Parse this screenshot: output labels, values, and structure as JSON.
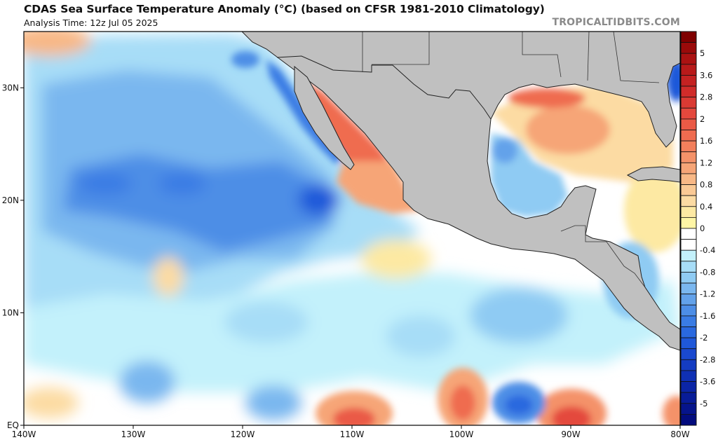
{
  "header": {
    "title": "CDAS Sea Surface Temperature Anomaly (°C) (based on CFSR 1981-2010 Climatology)",
    "analysis_time": "Analysis Time: 12z Jul 05 2025",
    "brand": "TROPICALTIDBITS.COM"
  },
  "map": {
    "projection": "equirectangular",
    "lon_range": [
      -140,
      -80
    ],
    "lat_range": [
      0,
      35
    ],
    "land_color": "#c0c0c0",
    "border_color": "#222222",
    "x_ticks": [
      {
        "lon": -140,
        "label": "140W"
      },
      {
        "lon": -130,
        "label": "130W"
      },
      {
        "lon": -120,
        "label": "120W"
      },
      {
        "lon": -110,
        "label": "110W"
      },
      {
        "lon": -100,
        "label": "100W"
      },
      {
        "lon": -90,
        "label": "90W"
      },
      {
        "lon": -80,
        "label": "80W"
      }
    ],
    "y_ticks": [
      {
        "lat": 0,
        "label": "EQ"
      },
      {
        "lat": 10,
        "label": "10N"
      },
      {
        "lat": 20,
        "label": "20N"
      },
      {
        "lat": 30,
        "label": "30N"
      }
    ],
    "features": [
      {
        "name": "warm-gulf-of-california",
        "lon": -110,
        "lat": 26,
        "anomaly": 2.0
      },
      {
        "name": "warm-northern-gulf-of-mexico",
        "lon": -90,
        "lat": 28,
        "anomaly": 1.6
      },
      {
        "name": "cold-western-gulf-of-mexico",
        "lon": -95.5,
        "lat": 24,
        "anomaly": -1.2
      },
      {
        "name": "cold-east-pacific-offshore-baja",
        "lon": -114,
        "lat": 20,
        "anomaly": -1.6
      },
      {
        "name": "warm-equatorial-110w",
        "lon": -110,
        "lat": 1,
        "anomaly": 1.6
      },
      {
        "name": "warm-equatorial-100w",
        "lon": -100,
        "lat": 2,
        "anomaly": 1.2
      },
      {
        "name": "warm-equatorial-90w",
        "lon": -90,
        "lat": 1,
        "anomaly": 2.0
      },
      {
        "name": "cold-equatorial-95w",
        "lon": -94.5,
        "lat": 2,
        "anomaly": -1.6
      },
      {
        "name": "cold-florida-atlantic",
        "lon": -80.5,
        "lat": 30,
        "anomaly": -2.0
      }
    ]
  },
  "colorbar": {
    "labels": [
      "5",
      "3.6",
      "2.8",
      "2",
      "1.6",
      "1.2",
      "0.8",
      "0.4",
      "0",
      "-0.4",
      "-0.8",
      "-1.2",
      "-1.6",
      "-2",
      "-2.8",
      "-3.6",
      "-5"
    ],
    "colors_top_to_bottom": [
      "#7f0000",
      "#9a0a0a",
      "#ab1212",
      "#b81a1a",
      "#c42222",
      "#d02c2a",
      "#da3a33",
      "#e4483d",
      "#ea5a46",
      "#ef6c50",
      "#f27f5c",
      "#f49269",
      "#f6a577",
      "#f8b886",
      "#fac995",
      "#fcdba3",
      "#fde9a3",
      "#fef5a5",
      "#ffffff",
      "#ffffff",
      "#c3f1fb",
      "#a7ddf7",
      "#8fcbf3",
      "#7ab7ef",
      "#63a2ea",
      "#4d8ee6",
      "#3a7ce4",
      "#2a69df",
      "#1f58d9",
      "#1a49cf",
      "#143cc2",
      "#0f30b4",
      "#0b25a6",
      "#081c98",
      "#06148b",
      "#030c7e"
    ]
  }
}
